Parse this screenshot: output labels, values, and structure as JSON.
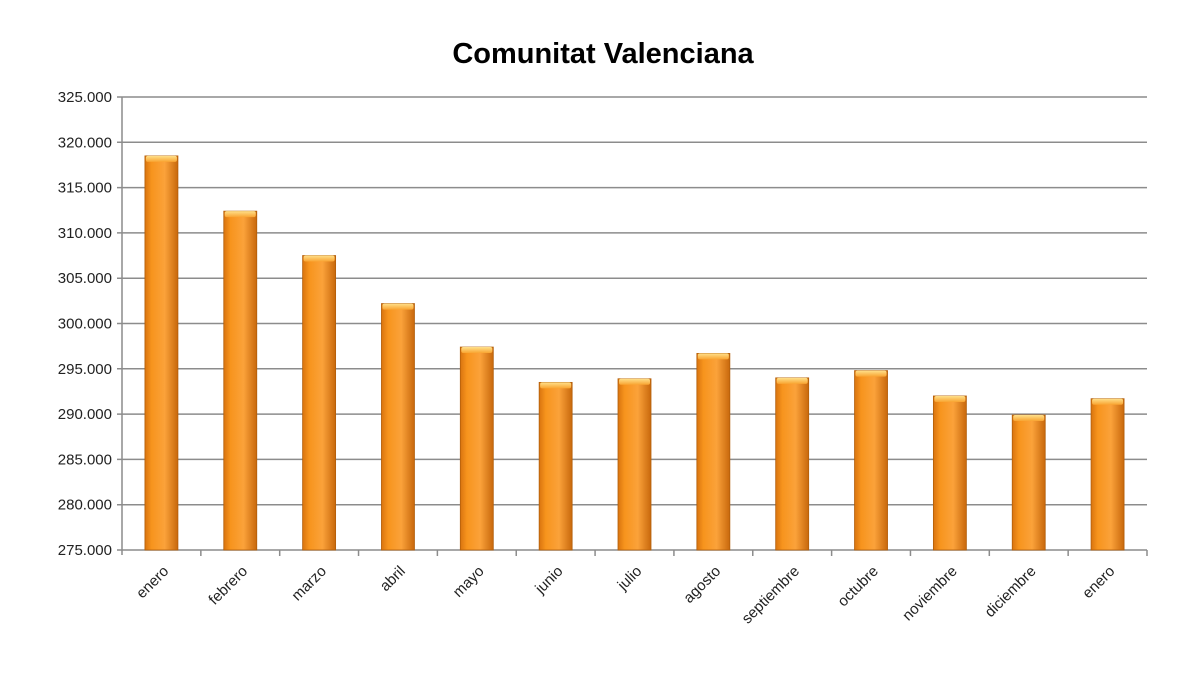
{
  "chart_data": {
    "type": "bar",
    "title": "Comunitat Valenciana",
    "xlabel": "",
    "ylabel": "",
    "categories": [
      "enero",
      "febrero",
      "marzo",
      "abril",
      "mayo",
      "junio",
      "julio",
      "agosto",
      "septiembre",
      "octubre",
      "noviembre",
      "diciembre",
      "enero"
    ],
    "values": [
      318500,
      312400,
      307500,
      302200,
      297400,
      293500,
      293900,
      296700,
      294000,
      294800,
      292000,
      289900,
      291700
    ],
    "ylim": [
      275000,
      325000
    ],
    "yticks": [
      275000,
      280000,
      285000,
      290000,
      295000,
      300000,
      305000,
      310000,
      315000,
      320000,
      325000
    ],
    "ytick_labels": [
      "275.000",
      "280.000",
      "285.000",
      "290.000",
      "295.000",
      "300.000",
      "305.000",
      "310.000",
      "315.000",
      "320.000",
      "325.000"
    ],
    "grid": true,
    "legend": "none",
    "colors": {
      "bar": "#f7941d",
      "bar_dark": "#c46a10",
      "bar_light": "#ffc66a",
      "grid": "#8c8c8c"
    }
  }
}
